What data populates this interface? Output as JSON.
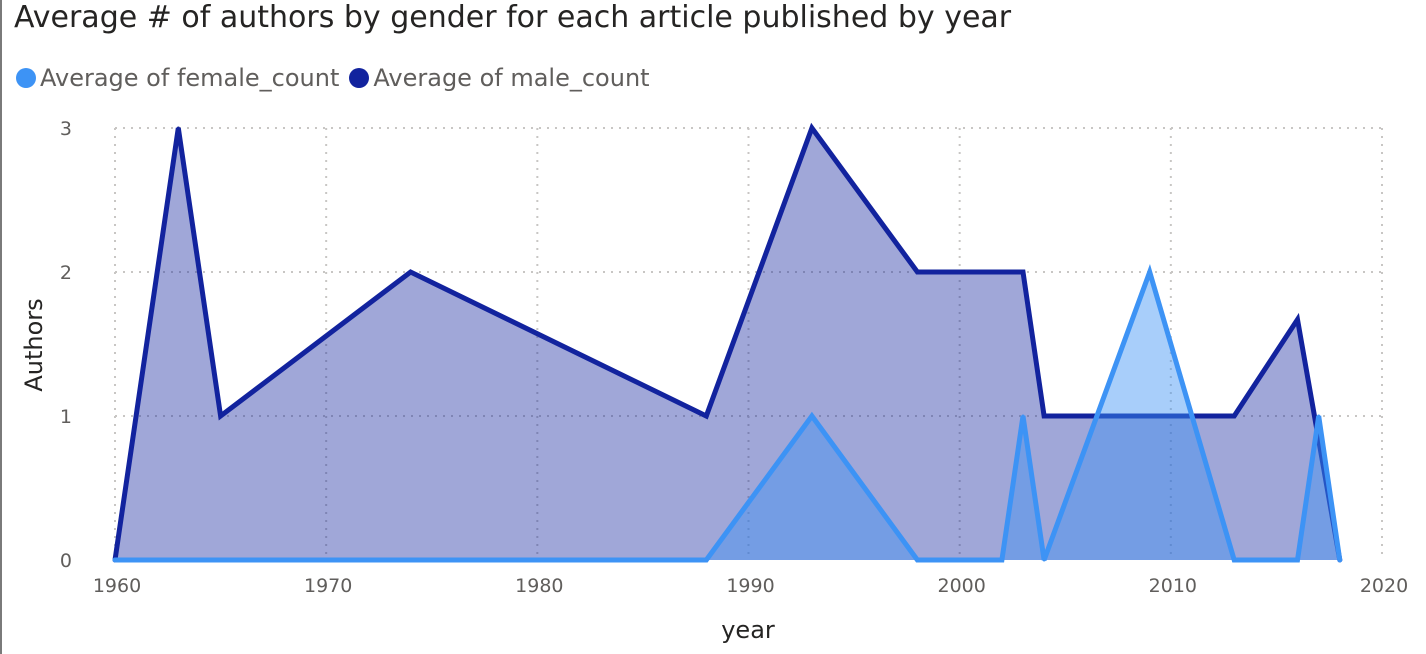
{
  "title": "Average # of authors by gender for each article published by year",
  "legend": [
    {
      "label": "Average of female_count",
      "color": "#3d93f5"
    },
    {
      "label": "Average of male_count",
      "color": "#12239e"
    }
  ],
  "chart_data": {
    "type": "area",
    "title": "Average # of authors by gender for each article published by year",
    "xlabel": "year",
    "ylabel": "Authors",
    "xlim": [
      1959,
      2020
    ],
    "ylim": [
      0,
      3
    ],
    "xticks": [
      1960,
      1970,
      1980,
      1990,
      2000,
      2010,
      2020
    ],
    "yticks": [
      0,
      1,
      2,
      3
    ],
    "grid": true,
    "legend_position": "top-left",
    "series": [
      {
        "name": "Average of male_count",
        "color": "#12239e",
        "x": [
          1960,
          1963,
          1965,
          1974,
          1988,
          1993,
          1998,
          2003,
          2004,
          2013,
          2016,
          2018
        ],
        "y": [
          0,
          3,
          1,
          2,
          1,
          3,
          2,
          2,
          1,
          1,
          1.67,
          0
        ]
      },
      {
        "name": "Average of female_count",
        "color": "#3d93f5",
        "x": [
          1960,
          1988,
          1993,
          1998,
          2002,
          2003,
          2004,
          2009,
          2013,
          2016,
          2017,
          2018
        ],
        "y": [
          0,
          0,
          1,
          0,
          0,
          1,
          0,
          2,
          0,
          0,
          1,
          0
        ]
      }
    ]
  }
}
